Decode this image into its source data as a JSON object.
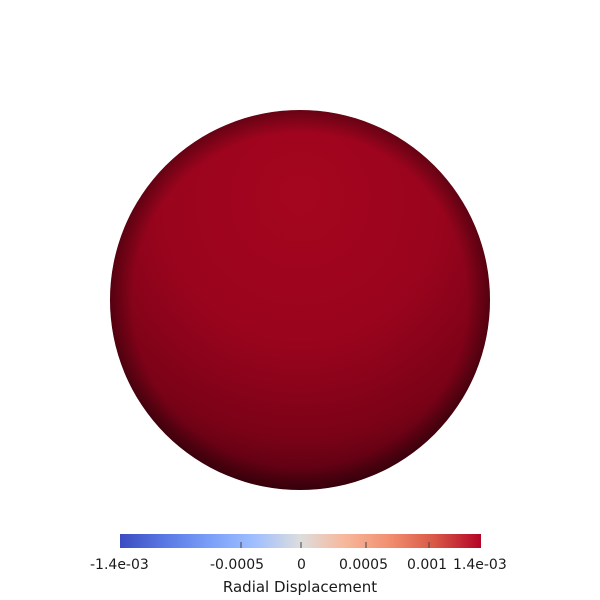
{
  "scene": {
    "background_color": "#ffffff",
    "object": "sphere",
    "surface_color": "#a0051f",
    "shadow_color": "#3a000a"
  },
  "colorbar": {
    "title": "Radial Displacement",
    "range": [
      -0.0014,
      0.0014
    ],
    "colormap": "coolwarm",
    "colors": [
      "#3b4cc0",
      "#8db0fe",
      "#dddddd",
      "#f49a7b",
      "#b40426"
    ],
    "tick_labels": {
      "min": "-1.4e-03",
      "t1": "-0.0005",
      "t2": "0",
      "t3": "0.0005",
      "t4": "0.001",
      "max": "1.4e-03"
    }
  }
}
